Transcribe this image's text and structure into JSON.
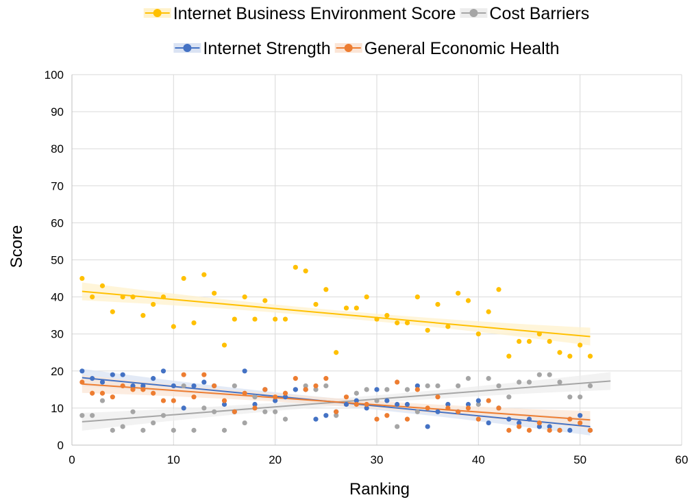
{
  "chart_data": {
    "type": "scatter",
    "title": "",
    "xlabel": "Ranking",
    "ylabel": "Score",
    "xlim": [
      0,
      60
    ],
    "ylim": [
      0,
      100
    ],
    "xticks": [
      "0",
      "10",
      "20",
      "30",
      "40",
      "50",
      "60"
    ],
    "yticks": [
      "0",
      "10",
      "20",
      "30",
      "40",
      "50",
      "60",
      "70",
      "80",
      "90",
      "100"
    ],
    "grid": true,
    "legend_position": "top",
    "series": [
      {
        "name": "Internet Business Environment Score",
        "color": "#FFC000",
        "band_color": "#FFF2CC",
        "points": [
          [
            1,
            45
          ],
          [
            2,
            40
          ],
          [
            3,
            43
          ],
          [
            4,
            36
          ],
          [
            5,
            40
          ],
          [
            6,
            40
          ],
          [
            7,
            35
          ],
          [
            8,
            38
          ],
          [
            9,
            40
          ],
          [
            10,
            32
          ],
          [
            11,
            45
          ],
          [
            12,
            33
          ],
          [
            13,
            46
          ],
          [
            14,
            41
          ],
          [
            15,
            27
          ],
          [
            16,
            34
          ],
          [
            17,
            40
          ],
          [
            18,
            34
          ],
          [
            19,
            39
          ],
          [
            20,
            34
          ],
          [
            21,
            34
          ],
          [
            22,
            48
          ],
          [
            23,
            47
          ],
          [
            24,
            38
          ],
          [
            25,
            42
          ],
          [
            26,
            25
          ],
          [
            27,
            37
          ],
          [
            28,
            37
          ],
          [
            29,
            40
          ],
          [
            30,
            34
          ],
          [
            31,
            35
          ],
          [
            32,
            33
          ],
          [
            33,
            33
          ],
          [
            34,
            40
          ],
          [
            35,
            31
          ],
          [
            36,
            38
          ],
          [
            37,
            32
          ],
          [
            38,
            41
          ],
          [
            39,
            39
          ],
          [
            40,
            30
          ],
          [
            41,
            36
          ],
          [
            42,
            42
          ],
          [
            43,
            24
          ],
          [
            44,
            28
          ],
          [
            45,
            28
          ],
          [
            46,
            30
          ],
          [
            47,
            28
          ],
          [
            48,
            25
          ],
          [
            49,
            24
          ],
          [
            50,
            27
          ],
          [
            51,
            24
          ]
        ],
        "trend": {
          "x_start": 1,
          "x_end": 51,
          "y_start": 41.5,
          "y_end": 29.3
        }
      },
      {
        "name": "Cost Barriers",
        "color": "#A5A5A5",
        "band_color": "#EDEDED",
        "points": [
          [
            1,
            8
          ],
          [
            2,
            8
          ],
          [
            3,
            12
          ],
          [
            4,
            4
          ],
          [
            5,
            5
          ],
          [
            6,
            9
          ],
          [
            7,
            4
          ],
          [
            8,
            6
          ],
          [
            9,
            8
          ],
          [
            10,
            4
          ],
          [
            11,
            16
          ],
          [
            12,
            4
          ],
          [
            13,
            10
          ],
          [
            14,
            9
          ],
          [
            15,
            4
          ],
          [
            16,
            16
          ],
          [
            17,
            6
          ],
          [
            18,
            13
          ],
          [
            19,
            9
          ],
          [
            20,
            9
          ],
          [
            21,
            7
          ],
          [
            22,
            15
          ],
          [
            23,
            16
          ],
          [
            24,
            15
          ],
          [
            25,
            16
          ],
          [
            26,
            8
          ],
          [
            27,
            11
          ],
          [
            28,
            14
          ],
          [
            29,
            15
          ],
          [
            30,
            12
          ],
          [
            31,
            15
          ],
          [
            32,
            5
          ],
          [
            33,
            15
          ],
          [
            34,
            9
          ],
          [
            35,
            16
          ],
          [
            36,
            16
          ],
          [
            37,
            11
          ],
          [
            38,
            16
          ],
          [
            39,
            18
          ],
          [
            40,
            11
          ],
          [
            41,
            18
          ],
          [
            42,
            16
          ],
          [
            43,
            13
          ],
          [
            44,
            17
          ],
          [
            45,
            17
          ],
          [
            46,
            19
          ],
          [
            47,
            19
          ],
          [
            48,
            17
          ],
          [
            49,
            13
          ],
          [
            50,
            13
          ],
          [
            51,
            16
          ]
        ],
        "trend": {
          "x_start": 1,
          "x_end": 53,
          "y_start": 6.3,
          "y_end": 17.3
        }
      },
      {
        "name": "Internet Strength",
        "color": "#4472C4",
        "band_color": "#DAE3F3",
        "points": [
          [
            1,
            20
          ],
          [
            2,
            18
          ],
          [
            3,
            17
          ],
          [
            4,
            19
          ],
          [
            5,
            19
          ],
          [
            6,
            16
          ],
          [
            7,
            16
          ],
          [
            8,
            18
          ],
          [
            9,
            20
          ],
          [
            10,
            16
          ],
          [
            11,
            10
          ],
          [
            12,
            16
          ],
          [
            13,
            17
          ],
          [
            14,
            16
          ],
          [
            15,
            11
          ],
          [
            16,
            9
          ],
          [
            17,
            20
          ],
          [
            18,
            11
          ],
          [
            19,
            15
          ],
          [
            20,
            12
          ],
          [
            21,
            13
          ],
          [
            22,
            15
          ],
          [
            23,
            15
          ],
          [
            24,
            7
          ],
          [
            25,
            8
          ],
          [
            26,
            9
          ],
          [
            27,
            11
          ],
          [
            28,
            12
          ],
          [
            29,
            10
          ],
          [
            30,
            15
          ],
          [
            31,
            12
          ],
          [
            32,
            11
          ],
          [
            33,
            11
          ],
          [
            34,
            16
          ],
          [
            35,
            5
          ],
          [
            36,
            9
          ],
          [
            37,
            11
          ],
          [
            38,
            9
          ],
          [
            39,
            11
          ],
          [
            40,
            12
          ],
          [
            41,
            6
          ],
          [
            42,
            10
          ],
          [
            43,
            7
          ],
          [
            44,
            6
          ],
          [
            45,
            7
          ],
          [
            46,
            5
          ],
          [
            47,
            5
          ],
          [
            48,
            4
          ],
          [
            49,
            4
          ],
          [
            50,
            8
          ],
          [
            51,
            4
          ]
        ],
        "trend": {
          "x_start": 1,
          "x_end": 51,
          "y_start": 18.2,
          "y_end": 5.0
        }
      },
      {
        "name": "General Economic Health",
        "color": "#ED7D31",
        "band_color": "#FBE5D6",
        "points": [
          [
            1,
            17
          ],
          [
            2,
            14
          ],
          [
            3,
            14
          ],
          [
            4,
            13
          ],
          [
            5,
            16
          ],
          [
            6,
            15
          ],
          [
            7,
            15
          ],
          [
            8,
            14
          ],
          [
            9,
            12
          ],
          [
            10,
            12
          ],
          [
            11,
            19
          ],
          [
            12,
            13
          ],
          [
            13,
            19
          ],
          [
            14,
            16
          ],
          [
            15,
            12
          ],
          [
            16,
            9
          ],
          [
            17,
            14
          ],
          [
            18,
            10
          ],
          [
            19,
            15
          ],
          [
            20,
            13
          ],
          [
            21,
            14
          ],
          [
            22,
            18
          ],
          [
            23,
            15
          ],
          [
            24,
            16
          ],
          [
            25,
            18
          ],
          [
            26,
            9
          ],
          [
            27,
            13
          ],
          [
            28,
            11
          ],
          [
            29,
            11
          ],
          [
            30,
            7
          ],
          [
            31,
            8
          ],
          [
            32,
            17
          ],
          [
            33,
            7
          ],
          [
            34,
            15
          ],
          [
            35,
            10
          ],
          [
            36,
            13
          ],
          [
            37,
            10
          ],
          [
            38,
            9
          ],
          [
            39,
            10
          ],
          [
            40,
            7
          ],
          [
            41,
            12
          ],
          [
            42,
            10
          ],
          [
            43,
            4
          ],
          [
            44,
            5
          ],
          [
            45,
            4
          ],
          [
            46,
            6
          ],
          [
            47,
            4
          ],
          [
            48,
            4
          ],
          [
            49,
            7
          ],
          [
            50,
            6
          ],
          [
            51,
            4
          ]
        ],
        "trend": {
          "x_start": 1,
          "x_end": 51,
          "y_start": 16.5,
          "y_end": 6.8
        }
      }
    ]
  }
}
